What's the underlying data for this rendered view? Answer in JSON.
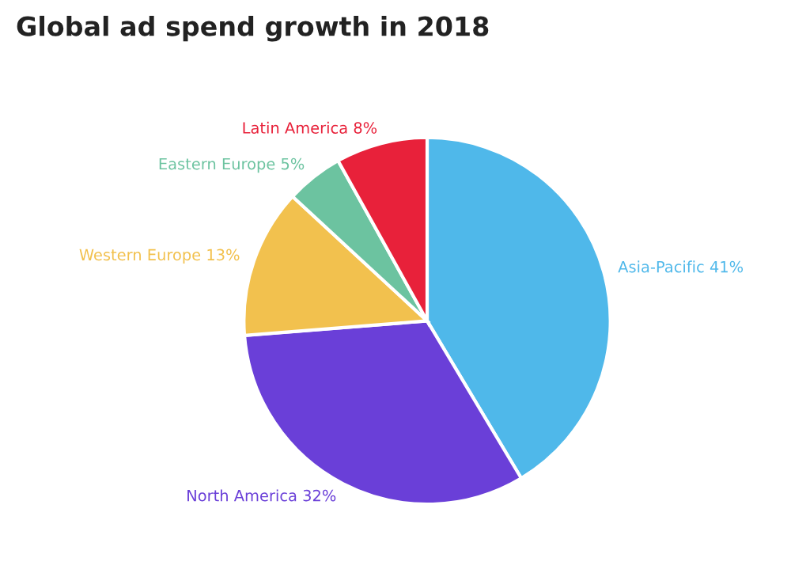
{
  "chart_data": {
    "type": "pie",
    "title": "Global ad spend growth in 2018",
    "categories": [
      "Asia-Pacific",
      "North America",
      "Western Europe",
      "Eastern Europe",
      "Latin America"
    ],
    "values": [
      41,
      32,
      13,
      5,
      8
    ],
    "value_labels": [
      "41%",
      "32%",
      "13%",
      "5%",
      "8%"
    ],
    "colors": [
      "#4fb8ea",
      "#6a3fd8",
      "#f2c14e",
      "#6cc3a0",
      "#e8213a"
    ],
    "legend": false
  }
}
